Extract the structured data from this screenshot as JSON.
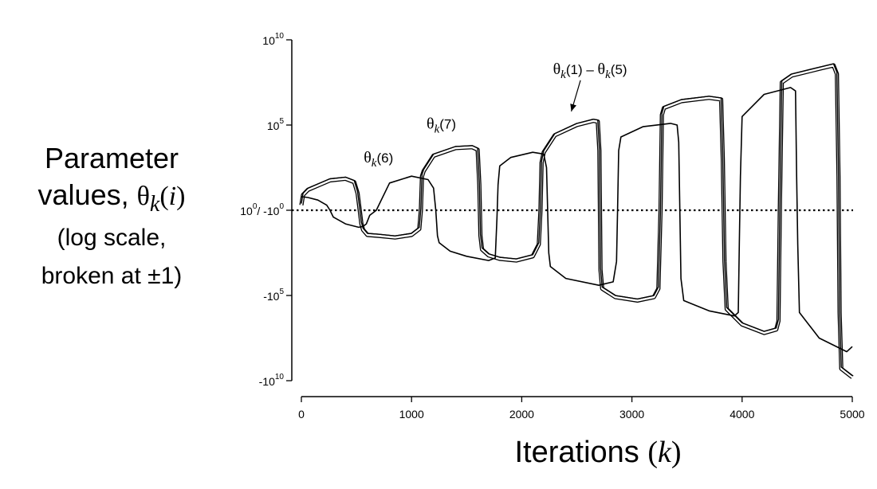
{
  "y_axis_label": {
    "line1": "Parameter",
    "line2_prefix": "values, ",
    "theta": "θ",
    "sub": "k",
    "arg_open": "(",
    "arg": "i",
    "arg_close": ")",
    "line3": "(log scale,",
    "line4": "broken at ±1)"
  },
  "x_axis_label": {
    "text": "Iterations ",
    "open": "(",
    "var": "k",
    "close": ")"
  },
  "chart_data": {
    "type": "line",
    "title": "",
    "xlabel": "Iterations (k)",
    "ylabel": "Parameter values, θk(i) (log scale, broken at ±1)",
    "y_scale": "symmetric log, broken at ±1",
    "xlim": [
      0,
      5000
    ],
    "ylim": [
      -10000000000.0,
      10000000000.0
    ],
    "grid": false,
    "x_ticks": [
      {
        "value": 0,
        "label": "0"
      },
      {
        "value": 1000,
        "label": "1000"
      },
      {
        "value": 2000,
        "label": "2000"
      },
      {
        "value": 3000,
        "label": "3000"
      },
      {
        "value": 4000,
        "label": "4000"
      },
      {
        "value": 5000,
        "label": "5000"
      }
    ],
    "y_ticks": [
      {
        "value": 10,
        "base": "10",
        "exp": "10"
      },
      {
        "value": 5,
        "base": "10",
        "exp": "5"
      },
      {
        "value": 0,
        "base": "10",
        "exp": "0",
        "slash": "/ -",
        "base2": "10",
        "exp2": "0"
      },
      {
        "value": -5,
        "base": "-10",
        "exp": "5"
      },
      {
        "value": -10,
        "base": "-10",
        "exp": "10"
      }
    ],
    "reference_line": {
      "y": 0,
      "style": "dotted"
    },
    "annotations": [
      {
        "theta": "θ",
        "sub": "k",
        "text": "(6)",
        "x": 700,
        "y": 2.8
      },
      {
        "theta": "θ",
        "sub": "k",
        "text": "(7)",
        "x": 1270,
        "y": 4.8
      },
      {
        "theta": "θ",
        "sub": "k",
        "text": "(1) – ",
        "theta2": "θ",
        "sub2": "k",
        "text2": "(5)",
        "x": 2620,
        "y": 8.0,
        "arrow_to": {
          "x": 2450,
          "y": 5.8
        }
      }
    ],
    "series": [
      {
        "label_ref": "θk(1) – θk(5)",
        "style": "double",
        "x": [
          0,
          15,
          60,
          150,
          260,
          400,
          480,
          510,
          530,
          545,
          560,
          600,
          700,
          850,
          1000,
          1070,
          1085,
          1095,
          1110,
          1200,
          1400,
          1550,
          1600,
          1615,
          1625,
          1640,
          1700,
          1800,
          1950,
          2100,
          2155,
          2170,
          2180,
          2200,
          2300,
          2500,
          2650,
          2690,
          2705,
          2715,
          2730,
          2850,
          3050,
          3200,
          3240,
          3260,
          3272,
          3290,
          3450,
          3700,
          3810,
          3825,
          3840,
          3860,
          4000,
          4200,
          4310,
          4330,
          4342,
          4360,
          4450,
          4700,
          4830,
          4860,
          4875,
          4885,
          4900,
          5000
        ],
        "y": [
          0.3,
          0.9,
          1.2,
          1.45,
          1.75,
          1.85,
          1.65,
          1.0,
          0.0,
          -0.8,
          -1.15,
          -1.45,
          -1.5,
          -1.6,
          -1.45,
          -1.1,
          0.0,
          2.0,
          2.3,
          3.2,
          3.65,
          3.7,
          3.55,
          1.5,
          -1.5,
          -2.3,
          -2.65,
          -2.85,
          -2.95,
          -2.7,
          -2.0,
          0.0,
          2.8,
          3.4,
          4.4,
          5.0,
          5.25,
          5.2,
          3.5,
          -3.5,
          -4.6,
          -5.1,
          -5.3,
          -5.1,
          -4.6,
          0.0,
          5.6,
          6.0,
          6.4,
          6.6,
          6.5,
          3.0,
          -3.0,
          -5.8,
          -6.7,
          -7.2,
          -7.0,
          -6.5,
          0.0,
          7.5,
          7.9,
          8.3,
          8.5,
          8.0,
          2.0,
          -6.0,
          -9.3,
          -9.8
        ]
      },
      {
        "label_ref": "θk(6), θk(7)",
        "style": "single",
        "x": [
          0,
          60,
          150,
          230,
          260,
          290,
          400,
          520,
          560,
          590,
          620,
          680,
          800,
          1000,
          1150,
          1200,
          1220,
          1235,
          1250,
          1350,
          1500,
          1700,
          1760,
          1775,
          1785,
          1800,
          1900,
          2100,
          2200,
          2225,
          2235,
          2245,
          2260,
          2400,
          2700,
          2830,
          2860,
          2870,
          2880,
          2900,
          3100,
          3350,
          3410,
          3425,
          3435,
          3445,
          3470,
          3700,
          3930,
          3965,
          3975,
          3985,
          4000,
          4200,
          4440,
          4485,
          4495,
          4505,
          4520,
          4700,
          4950,
          5000
        ],
        "y": [
          0.8,
          0.75,
          0.6,
          0.3,
          0.0,
          -0.4,
          -0.8,
          -1.0,
          -0.95,
          -0.8,
          -0.3,
          0.0,
          1.6,
          2.0,
          1.8,
          1.3,
          0.0,
          -1.5,
          -1.9,
          -2.4,
          -2.7,
          -2.95,
          -2.8,
          -0.5,
          1.5,
          2.6,
          3.1,
          3.4,
          3.3,
          2.5,
          0.0,
          -2.5,
          -3.3,
          -4.0,
          -4.4,
          -4.2,
          -3.0,
          0.0,
          3.5,
          4.3,
          4.9,
          5.1,
          5.0,
          4.0,
          0.0,
          -4.0,
          -5.3,
          -5.9,
          -6.2,
          -6.0,
          -2.0,
          2.0,
          5.5,
          6.8,
          7.2,
          7.0,
          2.0,
          -2.0,
          -6.0,
          -7.5,
          -8.3,
          -8.0
        ]
      }
    ]
  }
}
